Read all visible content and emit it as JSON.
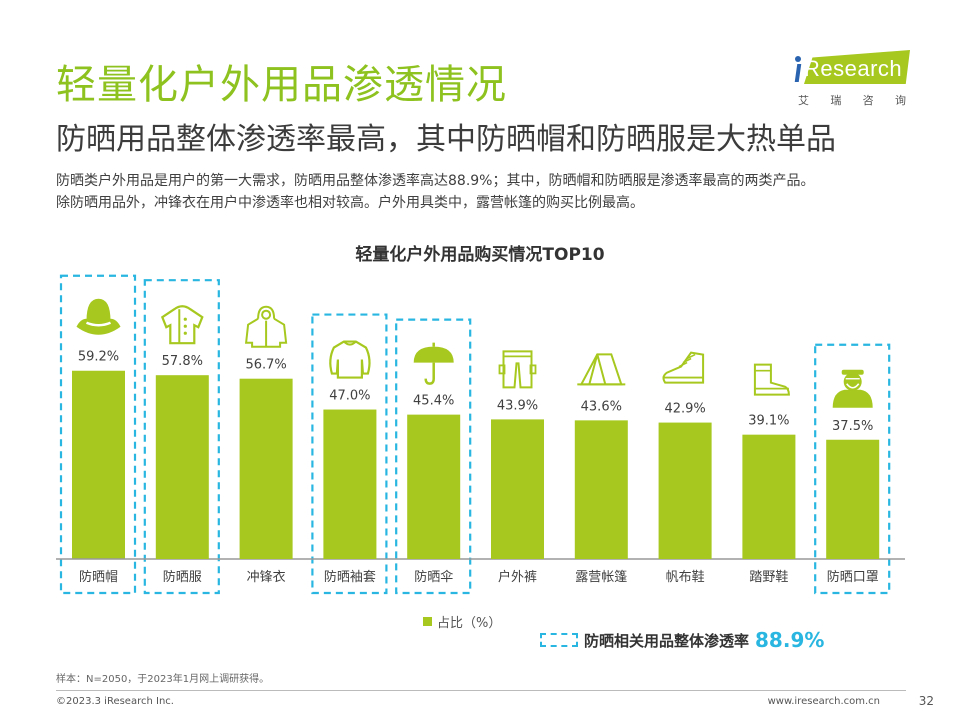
{
  "header": {
    "title": "轻量化户外用品渗透情况",
    "subtitle": "防晒用品整体渗透率最高，其中防晒帽和防晒服是大热单品",
    "description_lines": [
      "防晒类户外用品是用户的第一大需求，防晒用品整体渗透率高达88.9%；其中，防晒帽和防晒服是渗透率最高的两类产品。",
      "除防晒用品外，冲锋衣在用户中渗透率也相对较高。户外用具类中，露营帐篷的购买比例最高。"
    ]
  },
  "logo": {
    "brand": "Research",
    "sub_chars": [
      "艾",
      "瑞",
      "咨",
      "询"
    ]
  },
  "colors": {
    "title_green": "#8dc21f",
    "bar_green": "#a6c81f",
    "highlight_blue": "#29b6e0",
    "text_dark": "#404040"
  },
  "chart_data": {
    "type": "bar",
    "title": "轻量化户外用品购买情况TOP10",
    "categories": [
      "防晒帽",
      "防晒服",
      "冲锋衣",
      "防晒袖套",
      "防晒伞",
      "户外裤",
      "露营帐篷",
      "帆布鞋",
      "踏野鞋",
      "防晒口罩"
    ],
    "values": [
      59.2,
      57.8,
      56.7,
      47.0,
      45.4,
      43.9,
      43.6,
      42.9,
      39.1,
      37.5
    ],
    "value_labels": [
      "59.2%",
      "57.8%",
      "56.7%",
      "47.0%",
      "45.4%",
      "43.9%",
      "43.6%",
      "42.9%",
      "39.1%",
      "37.5%"
    ],
    "icons": [
      "sun-hat-icon",
      "sun-jacket-icon",
      "hooded-jacket-icon",
      "sleeve-shirt-icon",
      "umbrella-icon",
      "cargo-pants-icon",
      "tent-icon",
      "canvas-shoe-icon",
      "hiking-boot-icon",
      "face-mask-icon"
    ],
    "highlighted": [
      true,
      true,
      false,
      true,
      true,
      false,
      false,
      false,
      false,
      true
    ],
    "xlabel": "",
    "ylabel": "",
    "ylim": [
      0,
      65
    ],
    "grid": false,
    "legend": {
      "label": "占比（%）",
      "position": "bottom-center"
    },
    "annotation": {
      "label": "防晒相关用品整体渗透率",
      "value": "88.9%"
    }
  },
  "footer": {
    "note": "样本：N=2050，于2023年1月网上调研获得。",
    "copyright": "©2023.3 iResearch Inc.",
    "website": "www.iresearch.com.cn",
    "page": "32"
  }
}
